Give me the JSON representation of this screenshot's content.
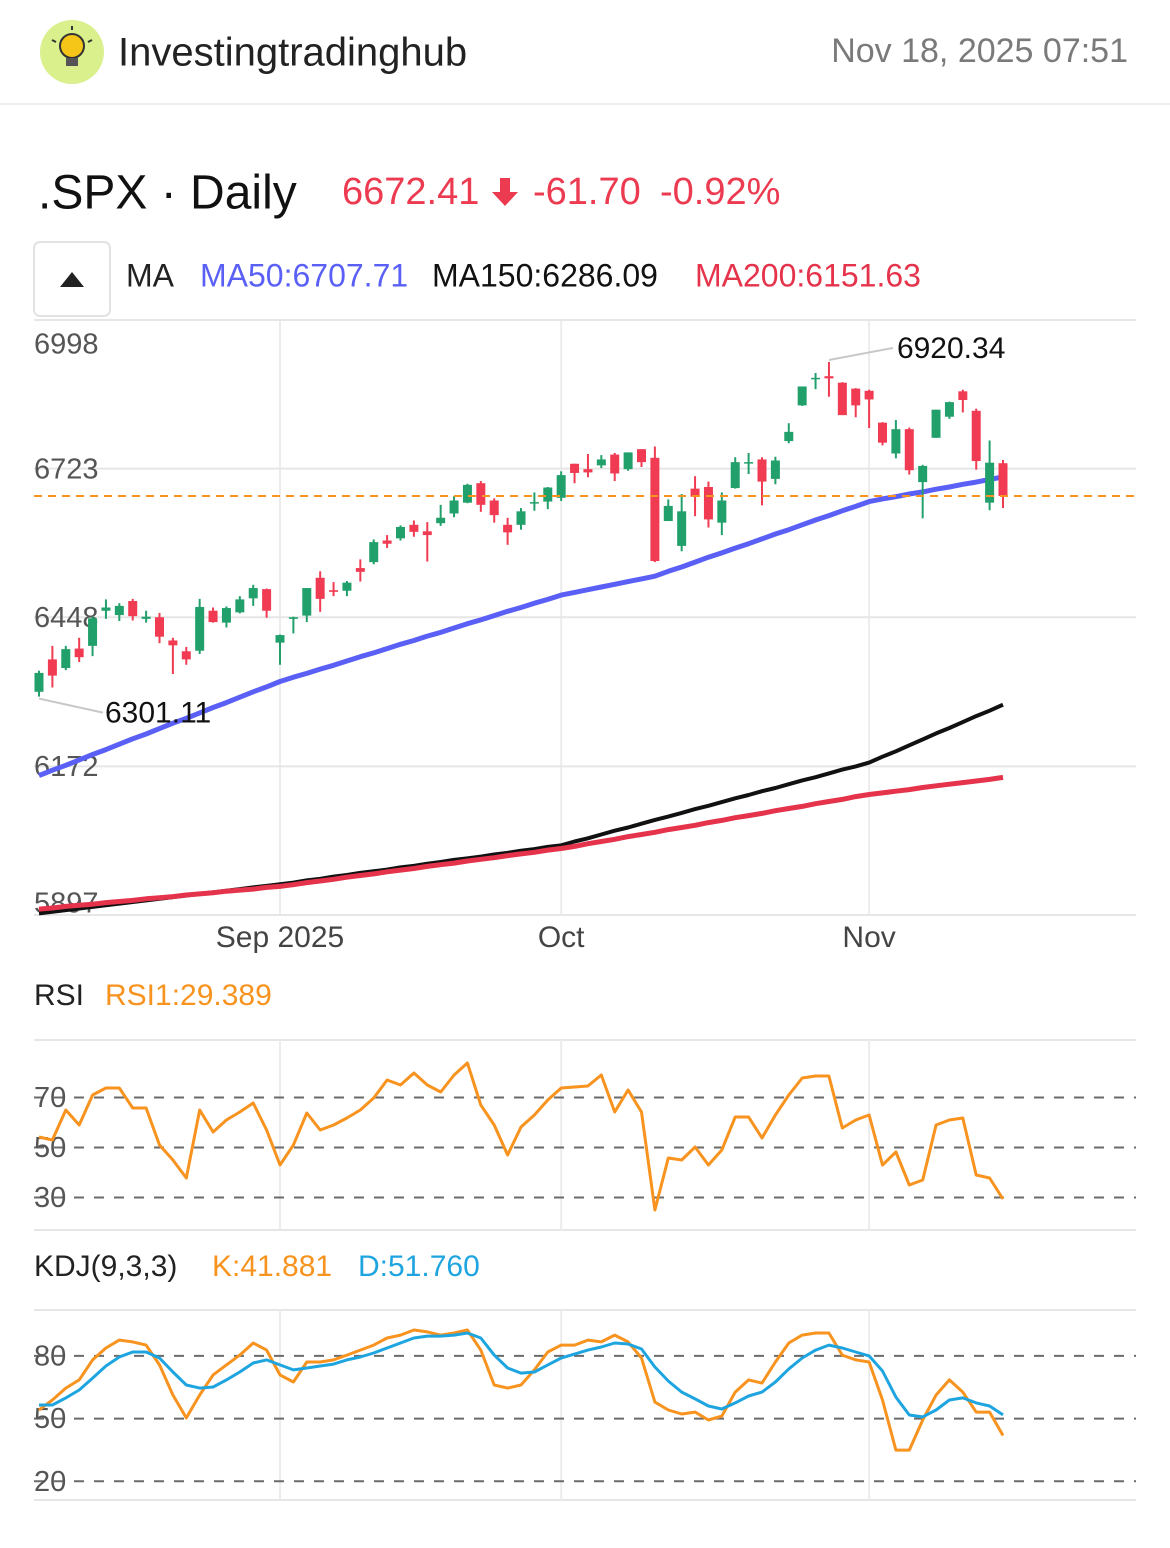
{
  "header": {
    "site": "Investingtradinghub",
    "datetime": "Nov 18, 2025 07:51"
  },
  "quote": {
    "symbol_interval": ".SPX · Daily",
    "change": "-61.70",
    "change_pct": "-0.92%",
    "color": "#ec3a50"
  },
  "chart_data": [
    {
      "type": "candlestick",
      "title": "MA",
      "categories": [
        null,
        null,
        null,
        null,
        null,
        null,
        null,
        null,
        null,
        null,
        null,
        null,
        null,
        null,
        null,
        null,
        null,
        null,
        "Sep 2025",
        null,
        null,
        null,
        null,
        null,
        null,
        null,
        null,
        null,
        null,
        null,
        null,
        null,
        null,
        null,
        null,
        null,
        null,
        null,
        null,
        "Oct",
        null,
        null,
        null,
        null,
        null,
        null,
        null,
        null,
        null,
        null,
        null,
        null,
        null,
        null,
        null,
        null,
        null,
        null,
        null,
        null,
        null,
        null,
        "Nov",
        null,
        null,
        null,
        null,
        null,
        null,
        null,
        null,
        null,
        null
      ],
      "open": [
        6310,
        6370,
        6354,
        6390,
        6395,
        6460,
        6452,
        6478,
        6445,
        6448,
        6405,
        6385,
        6386,
        6460,
        6438,
        6457,
        6483,
        6500,
        6401,
        6445,
        6451,
        6521,
        6498,
        6497,
        6539,
        6550,
        6590,
        6594,
        6619,
        6607,
        6622,
        6640,
        6660,
        6696,
        6664,
        6619,
        6619,
        6660,
        6662,
        6669,
        6732,
        6722,
        6729,
        6749,
        6722,
        6759,
        6743,
        6626,
        6580,
        6686,
        6689,
        6623,
        6687,
        6735,
        6740,
        6704,
        6774,
        6840,
        6891,
        6894,
        6882,
        6871,
        6867,
        6808,
        6751,
        6796,
        6698,
        6780,
        6819,
        6866,
        6830,
        6660,
        6733
      ],
      "high": [
        6349,
        6395,
        6395,
        6410,
        6449,
        6481,
        6474,
        6482,
        6460,
        6456,
        6410,
        6393,
        6482,
        6466,
        6468,
        6487,
        6508,
        6501,
        6416,
        6449,
        6502,
        6533,
        6513,
        6515,
        6555,
        6592,
        6600,
        6618,
        6627,
        6624,
        6656,
        6672,
        6695,
        6700,
        6668,
        6632,
        6650,
        6679,
        6689,
        6718,
        6732,
        6750,
        6748,
        6752,
        6753,
        6759,
        6764,
        6666,
        6676,
        6709,
        6699,
        6679,
        6744,
        6752,
        6744,
        6745,
        6807,
        6875,
        6900,
        6920.34,
        6883,
        6872,
        6869,
        6809,
        6813,
        6799,
        6730,
        6832,
        6847,
        6869,
        6834,
        6775,
        6739
      ],
      "low": [
        6301.11,
        6318,
        6350,
        6365,
        6376,
        6445,
        6441,
        6442,
        6438,
        6400,
        6343,
        6360,
        6380,
        6438,
        6429,
        6455,
        6469,
        6447,
        6360,
        6418,
        6439,
        6458,
        6487,
        6487,
        6514,
        6546,
        6576,
        6590,
        6597,
        6551,
        6617,
        6633,
        6659,
        6643,
        6623,
        6582,
        6610,
        6645,
        6648,
        6663,
        6696,
        6707,
        6724,
        6700,
        6719,
        6726,
        6550,
        6626,
        6570,
        6635,
        6614,
        6600,
        6686,
        6713,
        6655,
        6694,
        6770,
        6839,
        6870,
        6856,
        6822,
        6818,
        6798,
        6766,
        6742,
        6712,
        6631,
        6780,
        6815,
        6827,
        6721,
        6646,
        6650
      ],
      "close": [
        6345,
        6340,
        6389,
        6374,
        6446,
        6466,
        6469,
        6450,
        6449,
        6412,
        6396,
        6370,
        6467,
        6439,
        6465,
        6481,
        6502,
        6460,
        6415,
        6448,
        6502,
        6482,
        6495,
        6512,
        6532,
        6587,
        6584,
        6615,
        6606,
        6600,
        6632,
        6664,
        6693,
        6656,
        6637,
        6605,
        6644,
        6661,
        6688,
        6711,
        6715,
        6716,
        6740,
        6714,
        6753,
        6735,
        6552,
        6654,
        6644,
        6671,
        6629,
        6664,
        6735,
        6735,
        6699,
        6738,
        6791,
        6875,
        6891,
        6890,
        6822,
        6840,
        6851,
        6771,
        6796,
        6720,
        6728,
        6832,
        6846,
        6850,
        6737,
        6734,
        6672.41
      ],
      "up_color": "#22a06b",
      "down_color": "#f03b52",
      "price_line_color": "#f7931e",
      "ylim": [
        5897,
        6998
      ],
      "yticks": [
        6998,
        6723,
        6448,
        6172,
        5897
      ],
      "grid": true,
      "series": [
        {
          "name": "MA50:6707.71",
          "color": "#5a60f5",
          "values": [
            6155,
            6165,
            6174,
            6184,
            6194,
            6203,
            6213,
            6223,
            6232,
            6242,
            6252,
            6261,
            6271,
            6281,
            6290,
            6300,
            6310,
            6319,
            6329,
            6337,
            6344,
            6352,
            6359,
            6367,
            6375,
            6382,
            6390,
            6398,
            6405,
            6413,
            6420,
            6428,
            6436,
            6443,
            6451,
            6459,
            6466,
            6474,
            6481,
            6489,
            6494,
            6499,
            6504,
            6509,
            6514,
            6519,
            6524,
            6533,
            6541,
            6550,
            6559,
            6567,
            6576,
            6584,
            6593,
            6602,
            6610,
            6619,
            6628,
            6636,
            6645,
            6653,
            6662,
            6667,
            6671,
            6676,
            6680,
            6685,
            6689,
            6694,
            6698,
            6703,
            6707.71
          ]
        },
        {
          "name": "MA150:6286.09",
          "color": "#111111",
          "values": [
            5900,
            5903,
            5906,
            5909,
            5912,
            5915,
            5918,
            5921,
            5924,
            5927,
            5930,
            5933,
            5936,
            5939,
            5942,
            5945,
            5948,
            5951,
            5954,
            5957,
            5961,
            5964,
            5968,
            5971,
            5975,
            5978,
            5981,
            5985,
            5988,
            5992,
            5995,
            5999,
            6002,
            6005,
            6009,
            6012,
            6016,
            6019,
            6023,
            6026,
            6033,
            6039,
            6046,
            6053,
            6059,
            6066,
            6073,
            6079,
            6086,
            6093,
            6099,
            6106,
            6113,
            6119,
            6126,
            6132,
            6139,
            6146,
            6152,
            6159,
            6166,
            6172,
            6179,
            6190,
            6200,
            6211,
            6222,
            6233,
            6243,
            6254,
            6265,
            6275,
            6286.09
          ]
        },
        {
          "name": "MA200:6151.63",
          "color": "#e5334b",
          "values": [
            5908,
            5910,
            5913,
            5915,
            5917,
            5920,
            5922,
            5924,
            5927,
            5929,
            5931,
            5934,
            5936,
            5938,
            5941,
            5943,
            5945,
            5948,
            5950,
            5953,
            5957,
            5960,
            5963,
            5967,
            5970,
            5973,
            5977,
            5980,
            5983,
            5987,
            5990,
            5993,
            5997,
            6000,
            6003,
            6007,
            6010,
            6013,
            6017,
            6020,
            6024,
            6029,
            6033,
            6037,
            6042,
            6046,
            6050,
            6055,
            6059,
            6063,
            6068,
            6072,
            6077,
            6081,
            6085,
            6090,
            6094,
            6098,
            6103,
            6107,
            6111,
            6116,
            6120,
            6123,
            6126,
            6129,
            6133,
            6136,
            6139,
            6142,
            6145,
            6148,
            6151.63
          ]
        }
      ]
    },
    {
      "type": "line",
      "title": "RSI",
      "ylim": [
        17,
        93
      ],
      "yticks": [
        70,
        50,
        30
      ],
      "grid": "dashed",
      "series": [
        {
          "name": "RSI1:29.389",
          "color": "#f7931e",
          "values": [
            54.2,
            53,
            65,
            59,
            71,
            73.8,
            73.8,
            65.8,
            65.8,
            51,
            45,
            37.8,
            65,
            56.2,
            61,
            64.2,
            67.8,
            57,
            43,
            51,
            63.8,
            57,
            59,
            61.8,
            65,
            69.8,
            77,
            75,
            79.8,
            75,
            72.2,
            79,
            83.8,
            67,
            59,
            47,
            58.2,
            63,
            69,
            73.8,
            74.2,
            74.6,
            79,
            64.2,
            73,
            64.2,
            25,
            45.8,
            45,
            50.2,
            43,
            49,
            62.2,
            62.2,
            53.8,
            63,
            71,
            77.8,
            78.6,
            78.6,
            57.8,
            61,
            63,
            43,
            48.2,
            35,
            37,
            59,
            61,
            61.8,
            39,
            37.8,
            29.389
          ]
        }
      ]
    },
    {
      "type": "line",
      "title": "KDJ(9,3,3)",
      "ylim": [
        11,
        102
      ],
      "yticks": [
        80,
        50,
        20
      ],
      "grid": "dashed",
      "series": [
        {
          "name": "K:41.881",
          "color": "#f7931e",
          "values": [
            54.1,
            58.9,
            64.6,
            68.5,
            78.1,
            83.8,
            87.6,
            86.7,
            85.2,
            75.7,
            61.3,
            50.3,
            61.3,
            70.9,
            75.7,
            80.4,
            86.2,
            82.8,
            70.9,
            67.5,
            77.1,
            77.1,
            78.1,
            80.4,
            82.8,
            85.2,
            88.6,
            90,
            92.4,
            91.5,
            90,
            91,
            92.4,
            82.8,
            66.1,
            64.6,
            66.1,
            73.3,
            81.9,
            85.2,
            85.2,
            87.6,
            86.7,
            90,
            86.7,
            79,
            57.9,
            54.1,
            52.2,
            53.1,
            49.3,
            51.2,
            62.7,
            68.5,
            67,
            77.1,
            86.2,
            90,
            91,
            91,
            80.4,
            78.1,
            77.1,
            58.9,
            34.9,
            34.9,
            49.3,
            61.3,
            68.5,
            62.7,
            53.1,
            53.1,
            41.881
          ]
        },
        {
          "name": "D:51.760",
          "color": "#1ea5e0",
          "values": [
            56.5,
            56.5,
            59.9,
            63.7,
            69.4,
            75.2,
            79.5,
            81.9,
            81.9,
            79,
            72.3,
            66.1,
            64.6,
            65.1,
            68.5,
            72.3,
            76.6,
            78.1,
            75.7,
            73.3,
            74.2,
            75.2,
            76.1,
            78.1,
            79.5,
            81.4,
            83.8,
            86.2,
            88.6,
            89.5,
            89.5,
            90,
            91,
            88.6,
            80.4,
            74.2,
            71.8,
            72.3,
            75.7,
            79,
            80.9,
            82.8,
            84.3,
            86.2,
            85.7,
            83.3,
            74.7,
            68,
            62.7,
            59.4,
            56,
            54.6,
            57.5,
            60.8,
            62.7,
            67.5,
            73.8,
            79,
            82.8,
            85.2,
            83.8,
            81.9,
            80,
            72.8,
            60.3,
            51.7,
            50.8,
            54.1,
            58.9,
            59.9,
            57.5,
            56,
            51.76
          ]
        }
      ]
    }
  ]
}
